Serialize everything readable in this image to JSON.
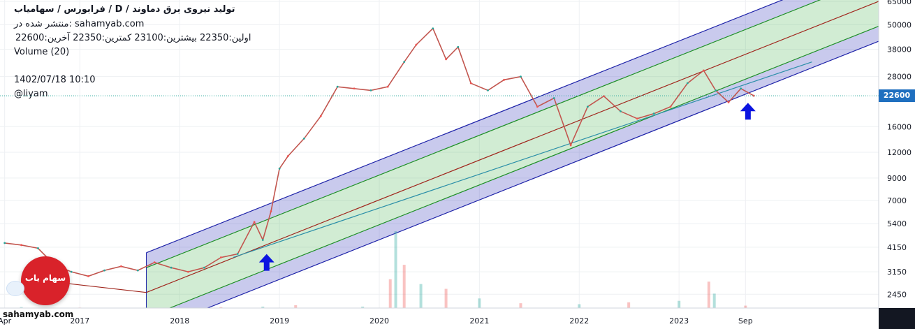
{
  "header": {
    "title": "تولید نیروی  برق دماوند /  D  /  فرابورس / سهامیاب",
    "published": "منتشر شده در: sahamyab.com",
    "ohlc": "اولین:22350  بیشترین:23100  کمترین:22350  آخرین:22600",
    "volume": "Volume (20)",
    "timestamp": "1402/07/18 10:10",
    "author": "@liyam"
  },
  "branding": {
    "logo_text": "سهام یاب",
    "watermark": "sahamyab.com"
  },
  "last_price_tag": "22600",
  "chart_data": {
    "type": "line",
    "y_scale": "log",
    "ylim": [
      2100,
      66000
    ],
    "y_ticks": [
      65000,
      50000,
      38000,
      28000,
      22600,
      16000,
      12000,
      9000,
      7000,
      5400,
      4150,
      3150,
      2450
    ],
    "x_ticks": [
      "Apr",
      "2017",
      "2018",
      "2019",
      "2020",
      "2021",
      "2022",
      "2023",
      "Sep"
    ],
    "x_tick_dates": [
      "2016-04-01",
      "2017-01-01",
      "2018-01-01",
      "2019-01-01",
      "2020-01-01",
      "2021-01-01",
      "2022-01-01",
      "2023-01-01",
      "2023-09-01"
    ],
    "x_range": [
      "2016-03-15",
      "2024-12-31"
    ],
    "series": [
      {
        "x": [
          "2016-04-01",
          "2016-06-01",
          "2016-08-01",
          "2016-10-01",
          "2016-12-01",
          "2017-02-01",
          "2017-04-01",
          "2017-06-01",
          "2017-08-01",
          "2017-10-01",
          "2017-12-01",
          "2018-02-01",
          "2018-04-01",
          "2018-06-01",
          "2018-08-01",
          "2018-10-01",
          "2018-11-01",
          "2018-12-01",
          "2019-01-01",
          "2019-02-01",
          "2019-04-01",
          "2019-06-01",
          "2019-08-01",
          "2019-10-01",
          "2019-12-01",
          "2020-02-01",
          "2020-04-01",
          "2020-05-15",
          "2020-07-15",
          "2020-09-01",
          "2020-10-15",
          "2020-12-01",
          "2021-02-01",
          "2021-04-01",
          "2021-06-01",
          "2021-08-01",
          "2021-10-01",
          "2021-12-01",
          "2022-02-01",
          "2022-04-01",
          "2022-06-01",
          "2022-08-01",
          "2022-10-01",
          "2022-12-01",
          "2023-02-01",
          "2023-04-01",
          "2023-05-15",
          "2023-07-01",
          "2023-08-15",
          "2023-10-01"
        ],
        "values": [
          4350,
          4250,
          4100,
          3400,
          3150,
          3000,
          3200,
          3350,
          3200,
          3500,
          3300,
          3150,
          3300,
          3700,
          3850,
          5500,
          4500,
          6200,
          10000,
          11500,
          14000,
          18000,
          25000,
          24500,
          24000,
          25000,
          33000,
          40000,
          48000,
          34000,
          39000,
          26000,
          24000,
          27000,
          28000,
          20000,
          22000,
          13000,
          20000,
          22500,
          19000,
          17500,
          18500,
          20000,
          26000,
          30000,
          24000,
          21000,
          24500,
          22600
        ]
      }
    ],
    "volume": {
      "x": [
        "2016-06-01",
        "2017-01-01",
        "2017-09-01",
        "2018-06-01",
        "2018-11-01",
        "2019-03-01",
        "2019-11-01",
        "2020-02-10",
        "2020-03-01",
        "2020-04-01",
        "2020-06-01",
        "2020-09-01",
        "2021-01-01",
        "2021-06-01",
        "2022-01-01",
        "2022-07-01",
        "2023-01-01",
        "2023-04-20",
        "2023-05-10",
        "2023-09-01"
      ],
      "values": [
        2,
        1,
        1,
        2,
        3,
        6,
        3,
        60,
        160,
        90,
        50,
        40,
        20,
        10,
        8,
        12,
        15,
        55,
        30,
        5
      ]
    },
    "regression_channel": {
      "start_date": "2017-09-01",
      "end_date": "2024-12-31",
      "mid_start": 2500,
      "mid_end": 65000,
      "lines": [
        {
          "ratio": 1.56,
          "color": "#1d22a8"
        },
        {
          "ratio": 1.32,
          "color": "#1e8f26"
        },
        {
          "ratio": 1.0,
          "color": "#a0261d"
        },
        {
          "ratio": 0.757,
          "color": "#1e8f26"
        },
        {
          "ratio": 0.64,
          "color": "#1d22a8"
        }
      ],
      "extension_start": [
        "2016-07-01",
        2900
      ]
    },
    "trend_line": {
      "points": [
        [
          "2018-07-15",
          3700
        ],
        [
          "2024-05-01",
          33000
        ]
      ],
      "color": "#2b8fa8"
    },
    "annotations": [
      {
        "type": "arrow-up",
        "date": "2018-11-15",
        "value": 3500,
        "color": "#0b14e0"
      },
      {
        "type": "arrow-up",
        "date": "2023-09-10",
        "value": 19000,
        "color": "#0b14e0"
      }
    ],
    "last_price": 22600,
    "colors": {
      "up": "#26a69a",
      "down": "#ef5350",
      "price_line": "#26a69a"
    }
  }
}
